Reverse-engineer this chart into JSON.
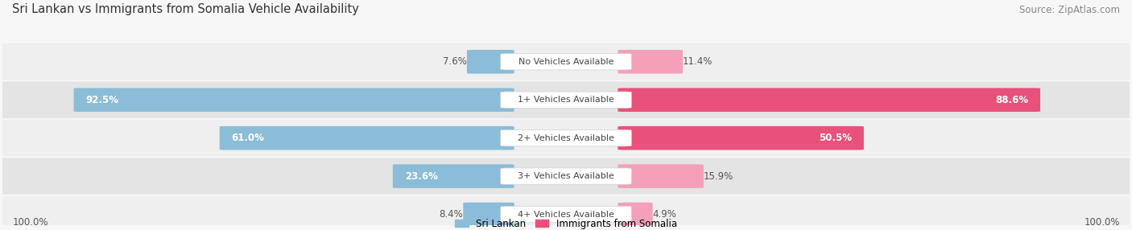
{
  "title": "Sri Lankan vs Immigrants from Somalia Vehicle Availability",
  "source": "Source: ZipAtlas.com",
  "categories": [
    "No Vehicles Available",
    "1+ Vehicles Available",
    "2+ Vehicles Available",
    "3+ Vehicles Available",
    "4+ Vehicles Available"
  ],
  "sri_lankan": [
    7.6,
    92.5,
    61.0,
    23.6,
    8.4
  ],
  "somalia": [
    11.4,
    88.6,
    50.5,
    15.9,
    4.9
  ],
  "sri_lankan_color": "#8bbcd8",
  "somalia_color_large": "#e8527a",
  "somalia_color_small": "#f4a0b8",
  "bar_bg_odd": "#efefef",
  "bar_bg_even": "#e4e4e4",
  "max_val": 100.0,
  "bottom_left_label": "100.0%",
  "bottom_right_label": "100.0%",
  "title_fontsize": 10.5,
  "source_fontsize": 8.5,
  "bar_label_fontsize": 8.5,
  "category_fontsize": 8.0,
  "legend_fontsize": 8.5,
  "large_threshold": 20
}
